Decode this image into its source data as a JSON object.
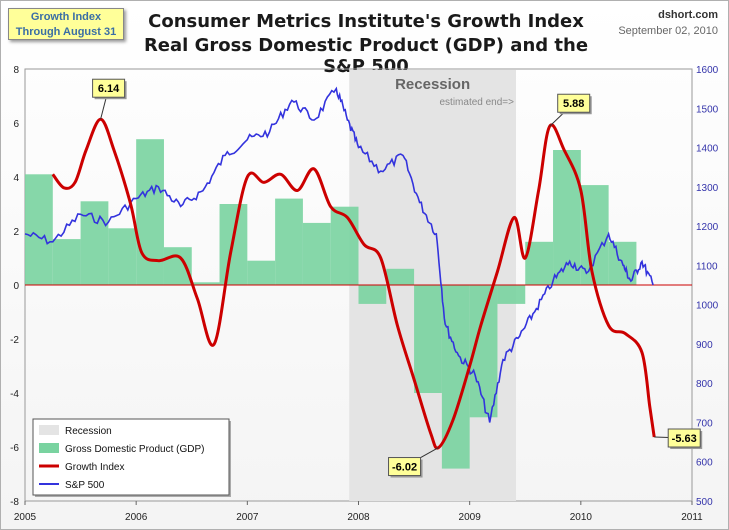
{
  "header": {
    "title_line1": "Consumer Metrics Institute's Growth Index",
    "title_line2": "Real Gross Domestic Product (GDP) and the S&P 500",
    "badge_line1": "Growth Index",
    "badge_line2": "Through August 31",
    "source": "dshort.com",
    "date": "September 02, 2010"
  },
  "chart_data": {
    "type": "line",
    "x_ticks": [
      "2005",
      "2006",
      "2007",
      "2008",
      "2009",
      "2010",
      "2011"
    ],
    "y_left": {
      "range": [
        -8,
        8
      ],
      "ticks": [
        -8,
        -6,
        -4,
        -2,
        0,
        2,
        4,
        6,
        8
      ]
    },
    "y_right": {
      "range": [
        500,
        1600
      ],
      "ticks": [
        500,
        600,
        700,
        800,
        900,
        1000,
        1100,
        1200,
        1300,
        1400,
        1500,
        1600
      ]
    },
    "colors": {
      "gdp": "#79d3a0",
      "growth": "#cc0000",
      "sp500": "#3333dd",
      "recession": "#e4e4e4",
      "zero_line": "#cc0000"
    },
    "recession": {
      "start": "2007-12",
      "end": "2009-06",
      "label": "Recession",
      "note": "estimated end=>"
    },
    "gdp_quarterly": [
      {
        "q": "2005-Q1",
        "v": 4.1
      },
      {
        "q": "2005-Q2",
        "v": 1.7
      },
      {
        "q": "2005-Q3",
        "v": 3.1
      },
      {
        "q": "2005-Q4",
        "v": 2.1
      },
      {
        "q": "2006-Q1",
        "v": 5.4
      },
      {
        "q": "2006-Q2",
        "v": 1.4
      },
      {
        "q": "2006-Q3",
        "v": 0.1
      },
      {
        "q": "2006-Q4",
        "v": 3.0
      },
      {
        "q": "2007-Q1",
        "v": 0.9
      },
      {
        "q": "2007-Q2",
        "v": 3.2
      },
      {
        "q": "2007-Q3",
        "v": 2.3
      },
      {
        "q": "2007-Q4",
        "v": 2.9
      },
      {
        "q": "2008-Q1",
        "v": -0.7
      },
      {
        "q": "2008-Q2",
        "v": 0.6
      },
      {
        "q": "2008-Q3",
        "v": -4.0
      },
      {
        "q": "2008-Q4",
        "v": -6.8
      },
      {
        "q": "2009-Q1",
        "v": -4.9
      },
      {
        "q": "2009-Q2",
        "v": -0.7
      },
      {
        "q": "2009-Q3",
        "v": 1.6
      },
      {
        "q": "2009-Q4",
        "v": 5.0
      },
      {
        "q": "2010-Q1",
        "v": 3.7
      },
      {
        "q": "2010-Q2",
        "v": 1.6
      }
    ],
    "growth_index": [
      [
        2005.25,
        4.1
      ],
      [
        2005.35,
        3.6
      ],
      [
        2005.45,
        3.8
      ],
      [
        2005.55,
        5.0
      ],
      [
        2005.68,
        6.14
      ],
      [
        2005.8,
        5.0
      ],
      [
        2005.95,
        3.0
      ],
      [
        2006.05,
        1.2
      ],
      [
        2006.2,
        0.9
      ],
      [
        2006.4,
        1.0
      ],
      [
        2006.55,
        -0.5
      ],
      [
        2006.7,
        -2.2
      ],
      [
        2006.85,
        1.2
      ],
      [
        2007.0,
        4.0
      ],
      [
        2007.15,
        3.8
      ],
      [
        2007.3,
        4.1
      ],
      [
        2007.45,
        3.5
      ],
      [
        2007.6,
        4.3
      ],
      [
        2007.75,
        2.9
      ],
      [
        2007.9,
        2.5
      ],
      [
        2008.05,
        1.5
      ],
      [
        2008.2,
        1.0
      ],
      [
        2008.35,
        -1.5
      ],
      [
        2008.5,
        -3.5
      ],
      [
        2008.65,
        -5.5
      ],
      [
        2008.72,
        -6.02
      ],
      [
        2008.85,
        -5.0
      ],
      [
        2009.0,
        -3.0
      ],
      [
        2009.1,
        -1.5
      ],
      [
        2009.25,
        0.5
      ],
      [
        2009.4,
        2.5
      ],
      [
        2009.5,
        1.0
      ],
      [
        2009.62,
        3.5
      ],
      [
        2009.72,
        5.88
      ],
      [
        2009.85,
        5.0
      ],
      [
        2010.0,
        3.5
      ],
      [
        2010.1,
        0.5
      ],
      [
        2010.25,
        -1.5
      ],
      [
        2010.4,
        -1.8
      ],
      [
        2010.55,
        -2.5
      ],
      [
        2010.62,
        -4.5
      ],
      [
        2010.66,
        -5.63
      ]
    ],
    "sp500": [
      [
        2005.0,
        1180
      ],
      [
        2005.25,
        1160
      ],
      [
        2005.5,
        1230
      ],
      [
        2005.75,
        1210
      ],
      [
        2006.0,
        1270
      ],
      [
        2006.2,
        1300
      ],
      [
        2006.4,
        1250
      ],
      [
        2006.6,
        1290
      ],
      [
        2006.8,
        1380
      ],
      [
        2007.0,
        1420
      ],
      [
        2007.2,
        1440
      ],
      [
        2007.4,
        1520
      ],
      [
        2007.6,
        1470
      ],
      [
        2007.8,
        1550
      ],
      [
        2007.9,
        1470
      ],
      [
        2008.0,
        1400
      ],
      [
        2008.2,
        1340
      ],
      [
        2008.4,
        1380
      ],
      [
        2008.55,
        1260
      ],
      [
        2008.7,
        1180
      ],
      [
        2008.78,
        950
      ],
      [
        2008.9,
        870
      ],
      [
        2009.05,
        820
      ],
      [
        2009.18,
        700
      ],
      [
        2009.3,
        860
      ],
      [
        2009.45,
        920
      ],
      [
        2009.6,
        990
      ],
      [
        2009.75,
        1060
      ],
      [
        2009.9,
        1110
      ],
      [
        2010.05,
        1080
      ],
      [
        2010.25,
        1180
      ],
      [
        2010.38,
        1100
      ],
      [
        2010.45,
        1060
      ],
      [
        2010.55,
        1110
      ],
      [
        2010.65,
        1050
      ]
    ],
    "callouts": [
      {
        "label": "6.14"
      },
      {
        "label": "-6.02"
      },
      {
        "label": "5.88"
      },
      {
        "label": "-5.63"
      }
    ],
    "legend": [
      {
        "key": "recession",
        "label": "Recession"
      },
      {
        "key": "gdp",
        "label": "Gross Domestic Product (GDP)"
      },
      {
        "key": "growth",
        "label": "Growth Index"
      },
      {
        "key": "sp500",
        "label": "S&P 500"
      }
    ],
    "legend_placement": "bottom-left"
  }
}
